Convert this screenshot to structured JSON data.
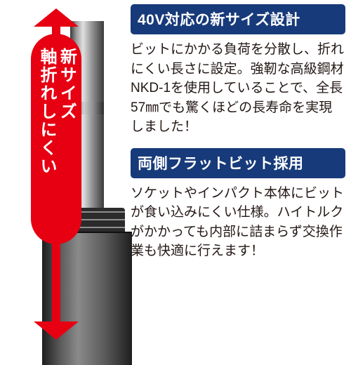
{
  "left": {
    "pill_line1": "軸折れしにくい",
    "pill_line2": "新サイズ"
  },
  "sections": [
    {
      "heading": "40V対応の新サイズ設計",
      "body": "ビットにかかる負荷を分散し、折れにくい長さに設定。強靭な高級鋼材NKD-1を使用していることで、全長57㎜でも驚くほどの長寿命を実現しました！"
    },
    {
      "heading": "両側フラットビット採用",
      "body": "ソケットやインパクト本体にビットが食い込みにくい仕様。ハイトルクがかかっても内部に詰まらず交換作業も快適に行えます！"
    }
  ],
  "style": {
    "accent": "#e60012",
    "heading_bg": "#173a7a",
    "heading_fg": "#ffffff",
    "text_color": "#231815",
    "heading_fontsize": 21,
    "body_fontsize": 19,
    "pill_fontsize": 24
  }
}
